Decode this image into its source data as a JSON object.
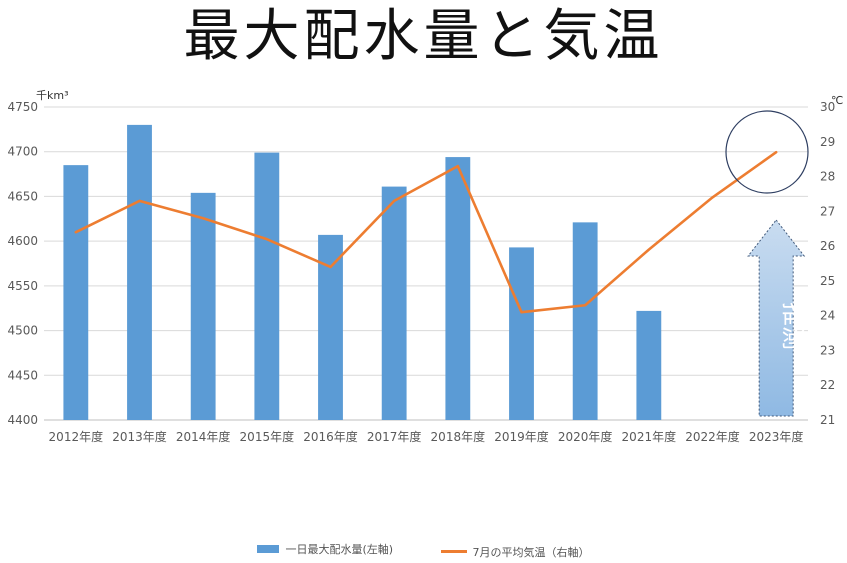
{
  "title": "最大配水量と気温",
  "chart_data": {
    "type": "bar",
    "title": "最大配水量と気温",
    "categories": [
      "2012年度",
      "2013年度",
      "2014年度",
      "2015年度",
      "2016年度",
      "2017年度",
      "2018年度",
      "2019年度",
      "2020年度",
      "2021年度",
      "2022年度",
      "2023年度"
    ],
    "left_axis": {
      "unit": "千km³",
      "ylim": [
        4400,
        4750
      ],
      "ticks": [
        4400,
        4450,
        4500,
        4550,
        4600,
        4650,
        4700,
        4750
      ]
    },
    "right_axis": {
      "unit": "℃",
      "ylim": [
        21,
        30
      ],
      "ticks": [
        21,
        22,
        23,
        24,
        25,
        26,
        27,
        28,
        29,
        30
      ]
    },
    "series": [
      {
        "name": "一日最大配水量(左軸)",
        "type": "bar",
        "axis": "left",
        "color": "#5b9bd5",
        "values": [
          4685,
          4730,
          4654,
          4699,
          4607,
          4661,
          4694,
          4593,
          4621,
          4522,
          null,
          null
        ]
      },
      {
        "name": "7月の平均気温（右軸）",
        "type": "line",
        "axis": "right",
        "color": "#ed7d31",
        "values": [
          26.4,
          27.3,
          26.8,
          26.2,
          25.4,
          27.3,
          28.3,
          24.1,
          24.3,
          25.9,
          27.4,
          28.7
        ]
      }
    ],
    "annotation": {
      "text": "推測",
      "color": "#9dc3e6"
    },
    "grid": true,
    "legend_position": "bottom"
  },
  "legend": {
    "bar_label": "一日最大配水量(左軸)",
    "line_label": "7月の平均気温（右軸）"
  }
}
